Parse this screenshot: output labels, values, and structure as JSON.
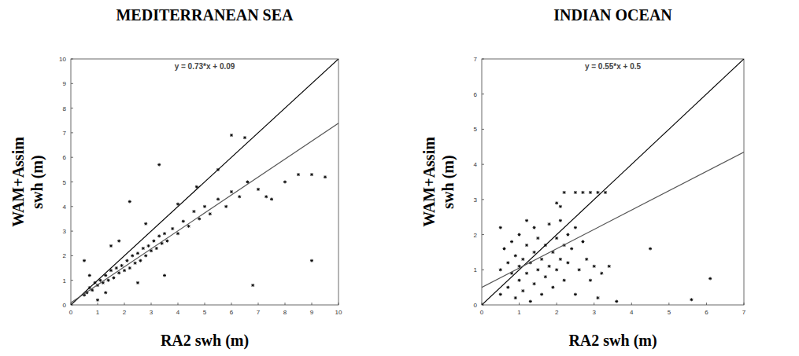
{
  "chart_data": [
    {
      "type": "scatter",
      "title": "MEDITERRANEAN SEA",
      "xlabel": "RA2 swh (m)",
      "ylabel": "WAM+Assim swh (m)",
      "annotation": "y = 0.73*x + 0.09",
      "fit": {
        "slope": 0.73,
        "intercept": 0.09
      },
      "xlim": [
        0,
        10
      ],
      "xticks": [
        0,
        1,
        2,
        3,
        4,
        5,
        6,
        7,
        8,
        9,
        10
      ],
      "ylim": [
        0,
        10
      ],
      "yticks": [
        0,
        1,
        2,
        3,
        4,
        5,
        6,
        7,
        8,
        9,
        10
      ],
      "series": [
        {
          "color": "#000000",
          "marker": "asterisk",
          "x": [
            0.5,
            0.6,
            0.7,
            0.8,
            0.9,
            1.0,
            1.1,
            1.2,
            1.3,
            1.4,
            1.5,
            1.6,
            1.7,
            1.8,
            1.9,
            2.0,
            2.1,
            2.2,
            2.3,
            2.4,
            2.5,
            2.6,
            2.7,
            2.8,
            2.9,
            3.0,
            3.1,
            3.2,
            3.3,
            3.4,
            3.5,
            3.6,
            3.8,
            4.0,
            4.2,
            4.4,
            4.6,
            4.8,
            5.0,
            5.2,
            5.5,
            5.8,
            6.0,
            6.3,
            6.6,
            7.0,
            7.5,
            8.0,
            8.5,
            9.0,
            9.5,
            9.0,
            6.8,
            3.3,
            6.0,
            2.2,
            1.5,
            0.5,
            1.0,
            2.5,
            3.5,
            4.7,
            5.5,
            6.5,
            7.3,
            1.8,
            2.8,
            0.7,
            1.3,
            4.0
          ],
          "values": [
            0.4,
            0.5,
            0.7,
            0.6,
            0.9,
            0.8,
            1.0,
            0.9,
            1.2,
            1.0,
            1.4,
            1.1,
            1.5,
            1.3,
            1.6,
            1.4,
            1.8,
            1.5,
            2.0,
            1.7,
            2.1,
            1.8,
            2.3,
            2.0,
            2.4,
            2.2,
            2.6,
            2.3,
            2.8,
            2.5,
            2.9,
            2.6,
            3.1,
            2.9,
            3.4,
            3.2,
            3.8,
            3.5,
            4.0,
            3.7,
            4.3,
            4.0,
            4.6,
            4.4,
            5.0,
            4.7,
            4.3,
            5.0,
            5.3,
            5.3,
            5.2,
            1.8,
            0.8,
            5.7,
            6.9,
            4.2,
            2.4,
            1.8,
            0.2,
            0.9,
            1.2,
            4.8,
            5.5,
            6.8,
            4.4,
            2.6,
            3.3,
            1.2,
            0.5,
            4.1
          ]
        }
      ]
    },
    {
      "type": "scatter",
      "title": "INDIAN OCEAN",
      "xlabel": "RA2 swh (m)",
      "ylabel": "WAM+Assim swh (m)",
      "annotation": "y = 0.55*x + 0.5",
      "fit": {
        "slope": 0.55,
        "intercept": 0.5
      },
      "xlim": [
        0,
        7
      ],
      "xticks": [
        0,
        1,
        2,
        3,
        4,
        5,
        6,
        7
      ],
      "ylim": [
        0,
        7
      ],
      "yticks": [
        0,
        1,
        2,
        3,
        4,
        5,
        6,
        7
      ],
      "series": [
        {
          "color": "#000000",
          "marker": "asterisk",
          "x": [
            0.5,
            0.5,
            0.6,
            0.7,
            0.7,
            0.8,
            0.8,
            0.9,
            0.9,
            1.0,
            1.0,
            1.0,
            1.1,
            1.1,
            1.2,
            1.2,
            1.3,
            1.3,
            1.4,
            1.4,
            1.4,
            1.5,
            1.5,
            1.6,
            1.6,
            1.7,
            1.7,
            1.8,
            1.8,
            1.9,
            1.9,
            2.0,
            2.0,
            2.1,
            2.1,
            2.2,
            2.2,
            2.3,
            2.3,
            2.4,
            2.5,
            2.5,
            2.6,
            2.7,
            2.8,
            2.9,
            3.0,
            3.1,
            3.2,
            3.4,
            3.6,
            2.5,
            2.7,
            2.9,
            3.1,
            3.3,
            2.2,
            2.1,
            4.5,
            5.6,
            6.1,
            0.5,
            1.2,
            2.0
          ],
          "values": [
            0.3,
            1.0,
            1.6,
            0.5,
            1.2,
            0.9,
            1.8,
            0.2,
            1.4,
            0.7,
            1.1,
            2.0,
            0.4,
            1.3,
            0.9,
            1.7,
            0.1,
            1.2,
            0.6,
            1.5,
            2.2,
            1.0,
            1.9,
            0.3,
            1.3,
            0.8,
            1.7,
            1.1,
            2.3,
            0.5,
            1.5,
            1.0,
            1.9,
            1.3,
            2.4,
            0.7,
            1.7,
            1.2,
            2.0,
            1.6,
            0.3,
            2.2,
            1.0,
            1.8,
            1.3,
            0.7,
            1.1,
            0.2,
            0.9,
            1.1,
            0.1,
            3.2,
            3.2,
            3.2,
            3.2,
            3.2,
            3.2,
            2.8,
            1.6,
            0.15,
            0.75,
            2.2,
            2.4,
            2.9
          ]
        }
      ]
    }
  ]
}
